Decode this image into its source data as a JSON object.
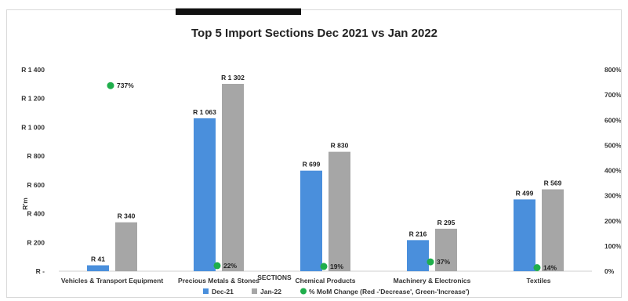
{
  "chart_data": {
    "type": "bar",
    "title": "Top 5 Import Sections Dec 2021 vs Jan 2022",
    "xlabel": "SECTIONS",
    "ylabel": "R'm",
    "categories": [
      "Vehicles & Transport Equipment",
      "Precious Metals & Stones",
      "Chemical Products",
      "Machinery & Electronics",
      "Textiles"
    ],
    "series": [
      {
        "name": "Dec-21",
        "values": [
          41,
          1063,
          699,
          216,
          499
        ],
        "labels": [
          "R 41",
          "R 1 063",
          "R 699",
          "R 216",
          "R 499"
        ],
        "color": "#4a8fdc"
      },
      {
        "name": "Jan-22",
        "values": [
          340,
          1302,
          830,
          295,
          569
        ],
        "labels": [
          "R 340",
          "R 1 302",
          "R 830",
          "R 295",
          "R 569"
        ],
        "color": "#a6a6a6"
      }
    ],
    "secondary_series": {
      "name": "% MoM Change (Red -'Decrease', Green-'Increase')",
      "type": "scatter",
      "values": [
        737,
        22,
        19,
        37,
        14
      ],
      "labels": [
        "737%",
        "22%",
        "19%",
        "37%",
        "14%"
      ],
      "color": "#1fae4b"
    },
    "ylim": [
      0,
      1400
    ],
    "yticks": [
      0,
      200,
      400,
      600,
      800,
      1000,
      1200,
      1400
    ],
    "ytick_labels": [
      "R -",
      "R 200",
      "R 400",
      "R 600",
      "R 800",
      "R 1 000",
      "R 1 200",
      "R 1 400"
    ],
    "y2lim": [
      0,
      800
    ],
    "y2ticks": [
      0,
      100,
      200,
      300,
      400,
      500,
      600,
      700,
      800
    ],
    "y2tick_labels": [
      "0%",
      "100%",
      "200%",
      "300%",
      "400%",
      "500%",
      "600%",
      "700%",
      "800%"
    ],
    "grid": false,
    "legend_position": "bottom"
  }
}
